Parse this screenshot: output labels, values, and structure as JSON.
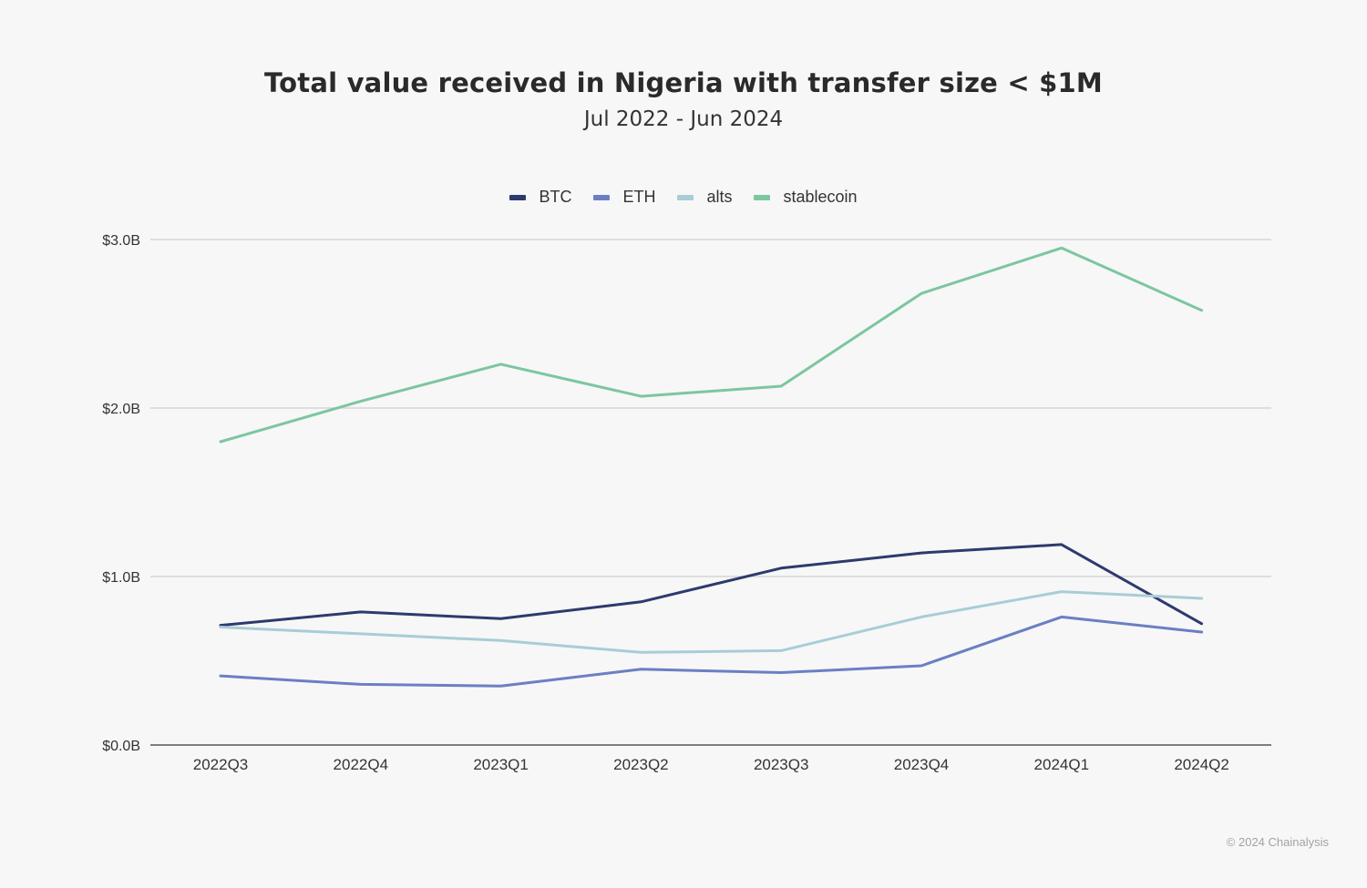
{
  "chart_data": {
    "type": "line",
    "title": "Total value received in Nigeria with transfer size < $1M",
    "subtitle": "Jul 2022 - Jun 2024",
    "xlabel": "",
    "ylabel": "",
    "categories": [
      "2022Q3",
      "2022Q4",
      "2023Q1",
      "2023Q2",
      "2023Q3",
      "2023Q4",
      "2024Q1",
      "2024Q2"
    ],
    "ylim": [
      0,
      3.0
    ],
    "yticks": [
      0,
      1.0,
      2.0,
      3.0
    ],
    "ytick_labels": [
      "$0.0B",
      "$1.0B",
      "$2.0B",
      "$3.0B"
    ],
    "grid": true,
    "legend_position": "top-center",
    "series": [
      {
        "name": "BTC",
        "color": "#2e3a6e",
        "values": [
          0.71,
          0.79,
          0.75,
          0.85,
          1.05,
          1.14,
          1.19,
          0.72
        ]
      },
      {
        "name": "ETH",
        "color": "#6b7fc4",
        "values": [
          0.41,
          0.36,
          0.35,
          0.45,
          0.43,
          0.47,
          0.76,
          0.67
        ]
      },
      {
        "name": "alts",
        "color": "#a8cdd6",
        "values": [
          0.7,
          0.66,
          0.62,
          0.55,
          0.56,
          0.76,
          0.91,
          0.87
        ]
      },
      {
        "name": "stablecoin",
        "color": "#7cc6a0",
        "values": [
          1.8,
          2.04,
          2.26,
          2.07,
          2.13,
          2.68,
          2.95,
          2.58
        ]
      }
    ]
  },
  "footer": {
    "copyright": "© 2024 Chainalysis"
  }
}
